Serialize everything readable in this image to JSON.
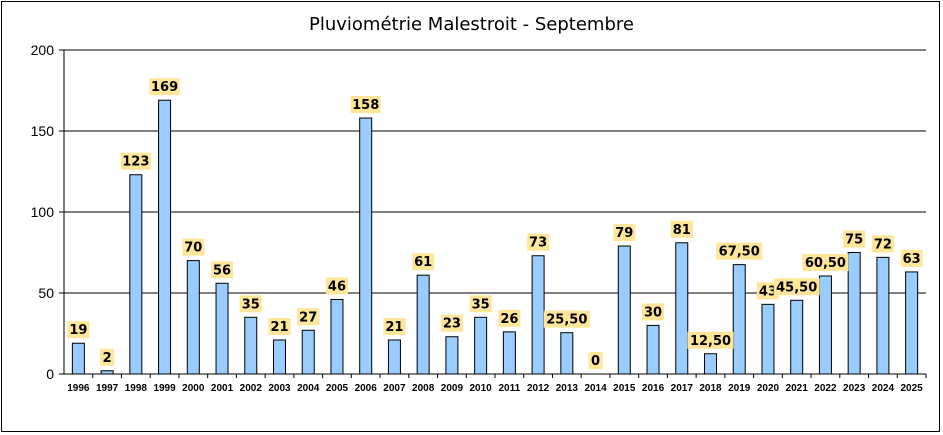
{
  "chart_data": {
    "type": "bar",
    "title": "Pluviométrie Malestroit - Septembre",
    "xlabel": "",
    "ylabel": "",
    "ylim": [
      0,
      200
    ],
    "yticks": [
      0,
      50,
      100,
      150,
      200
    ],
    "grid": true,
    "legend": "none",
    "categories": [
      "1996",
      "1997",
      "1998",
      "1999",
      "2000",
      "2001",
      "2002",
      "2003",
      "2004",
      "2005",
      "2006",
      "2007",
      "2008",
      "2009",
      "2010",
      "2011",
      "2012",
      "2013",
      "2014",
      "2015",
      "2016",
      "2017",
      "2018",
      "2019",
      "2020",
      "2021",
      "2022",
      "2023",
      "2024",
      "2025"
    ],
    "values": [
      19,
      2,
      123,
      169,
      70,
      56,
      35,
      21,
      27,
      46,
      158,
      21,
      61,
      23,
      35,
      26,
      73,
      25.5,
      0,
      79,
      30,
      81,
      12.5,
      67.5,
      43,
      45.5,
      60.5,
      75,
      72,
      63
    ],
    "labels": [
      "19",
      "2",
      "123",
      "169",
      "70",
      "56",
      "35",
      "21",
      "27",
      "46",
      "158",
      "21",
      "61",
      "23",
      "35",
      "26",
      "73",
      "25,50",
      "0",
      "79",
      "30",
      "81",
      "12,50",
      "67,50",
      "43",
      "45,50",
      "60,50",
      "75",
      "72",
      "63"
    ],
    "colors": {
      "bar": "#99ccff",
      "bar_stroke": "#000000",
      "label_bg": "#ffe699",
      "grid": "#000000"
    }
  }
}
